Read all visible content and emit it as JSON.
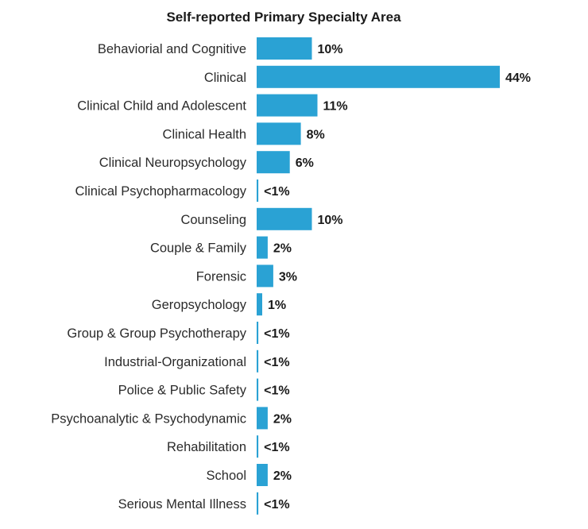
{
  "chart_data": {
    "type": "bar",
    "orientation": "horizontal",
    "title": "Self-reported Primary Specialty Area",
    "xlabel": "",
    "ylabel": "",
    "xlim": [
      0,
      44
    ],
    "grid": false,
    "legend": "none",
    "bar_color": "#2aa2d4",
    "categories": [
      "Behaviorial and Cognitive",
      "Clinical",
      "Clinical Child and Adolescent",
      "Clinical Health",
      "Clinical Neuropsychology",
      "Clinical Psychopharmacology",
      "Counseling",
      "Couple & Family",
      "Forensic",
      "Geropsychology",
      "Group & Group Psychotherapy",
      "Industrial-Organizational",
      "Police & Public Safety",
      "Psychoanalytic & Psychodynamic",
      "Rehabilitation",
      "School",
      "Serious Mental Illness"
    ],
    "values": [
      10,
      44,
      11,
      8,
      6,
      0.3,
      10,
      2,
      3,
      1,
      0.3,
      0.3,
      0.3,
      2,
      0.3,
      2,
      0.3
    ],
    "value_labels": [
      "10%",
      "44%",
      "11%",
      "8%",
      "6%",
      "<1%",
      "10%",
      "2%",
      "3%",
      "1%",
      "<1%",
      "<1%",
      "<1%",
      "2%",
      "<1%",
      "2%",
      "<1%"
    ]
  }
}
